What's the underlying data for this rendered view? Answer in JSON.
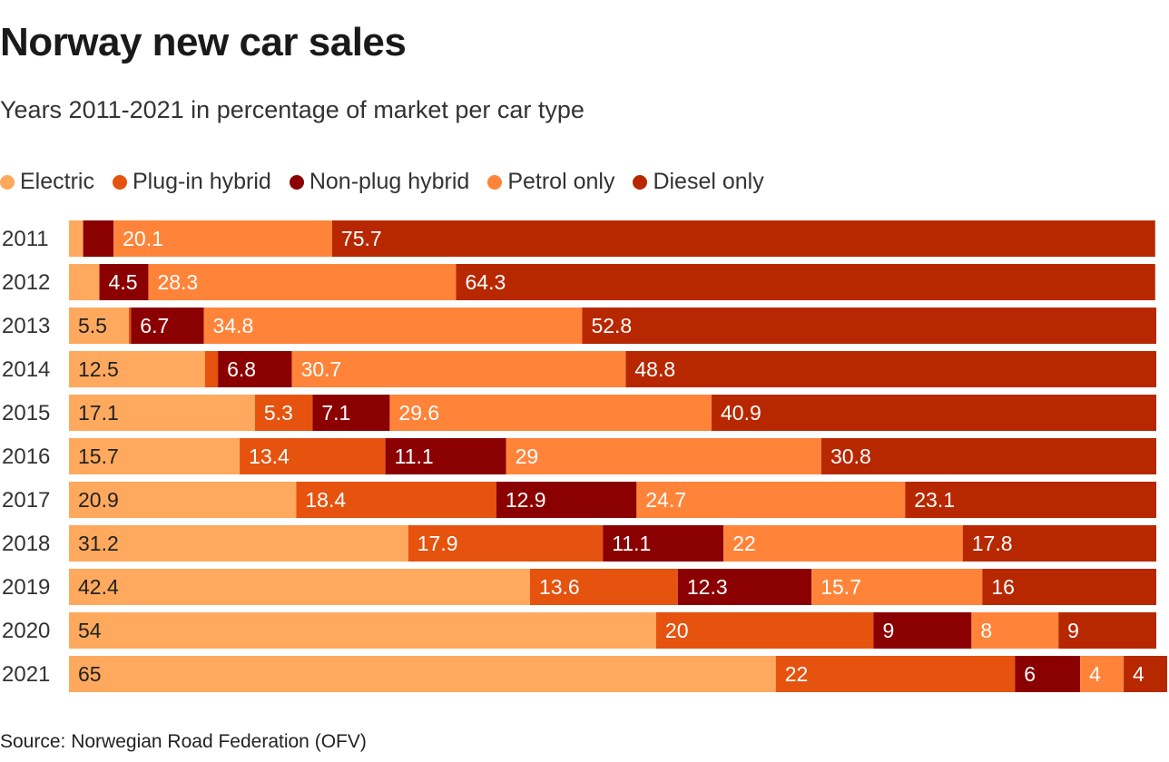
{
  "chart_data": {
    "type": "bar",
    "orientation": "horizontal",
    "stacked": true,
    "title": "Norway new car sales",
    "subtitle": "Years 2011-2021 in percentage of market per car type",
    "source": "Source: Norwegian Road Federation (OFV)",
    "categories": [
      "2011",
      "2012",
      "2013",
      "2014",
      "2015",
      "2016",
      "2017",
      "2018",
      "2019",
      "2020",
      "2021"
    ],
    "xlim": [
      0,
      100
    ],
    "grid": false,
    "legend_position": "top-left",
    "series": [
      {
        "name": "Electric",
        "color": "#ffa95e",
        "label_color": "#222222",
        "values": [
          1.3,
          2.8,
          5.5,
          12.5,
          17.1,
          15.7,
          20.9,
          31.2,
          42.4,
          54,
          65
        ]
      },
      {
        "name": "Plug-in hybrid",
        "color": "#e5530f",
        "label_color": "#ffffff",
        "values": [
          0,
          0,
          0.2,
          1.2,
          5.3,
          13.4,
          18.4,
          17.9,
          13.6,
          20,
          22
        ]
      },
      {
        "name": "Non-plug hybrid",
        "color": "#8b0000",
        "label_color": "#ffffff",
        "values": [
          2.8,
          4.5,
          6.7,
          6.8,
          7.1,
          11.1,
          12.9,
          11.1,
          12.3,
          9,
          6
        ]
      },
      {
        "name": "Petrol only",
        "color": "#ff8439",
        "label_color": "#ffffff",
        "values": [
          20.1,
          28.3,
          34.8,
          30.7,
          29.6,
          29,
          24.7,
          22,
          15.7,
          8,
          4
        ]
      },
      {
        "name": "Diesel only",
        "color": "#b82800",
        "label_color": "#ffffff",
        "values": [
          75.7,
          64.3,
          52.8,
          48.8,
          40.9,
          30.8,
          23.1,
          17.8,
          16,
          9,
          4
        ]
      }
    ]
  }
}
